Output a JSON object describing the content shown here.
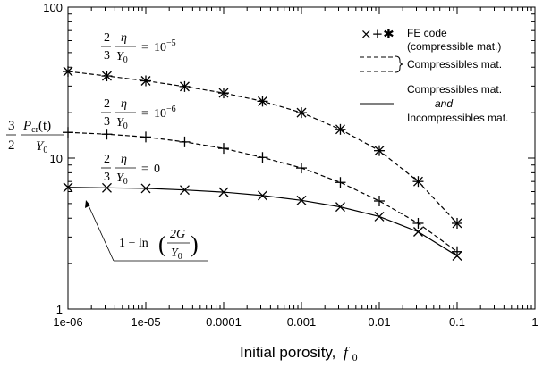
{
  "chart_data": {
    "type": "line",
    "xscale": "log",
    "yscale": "log",
    "xlim": [
      1e-06,
      1
    ],
    "ylim": [
      1,
      100
    ],
    "xticks": [
      "1e-06",
      "1e-05",
      "0.0001",
      "0.001",
      "0.01",
      "0.1",
      "1"
    ],
    "yticks": [
      "1",
      "10",
      "100"
    ],
    "xlabel_text": "Initial porosity,",
    "xlabel_symbol": "f",
    "xlabel_subscript": "0",
    "ylabel_fraction_num": "P",
    "ylabel_fraction_num_sub": "cr",
    "ylabel_fraction_num_arg": "(t)",
    "ylabel_fraction_den": "Y",
    "ylabel_fraction_den_sub": "0",
    "ylabel_coef_num": "3",
    "ylabel_coef_den": "2",
    "grid": false,
    "legend": {
      "placement": "top-right",
      "entries": [
        {
          "line1": "FE code",
          "line2": "(compressible mat.)",
          "style": "markers"
        },
        {
          "line1": "Compressibles mat.",
          "style": "dashed"
        },
        {
          "line1": "Compressibles mat.",
          "line2": "and",
          "line3": "Incompressibles mat.",
          "style": "solid"
        }
      ],
      "marker_glyphs": [
        "×",
        "+",
        "✱"
      ]
    },
    "annotations": {
      "eta_labels": [
        {
          "coef_num": "2",
          "coef_den": "3",
          "frac_num": "η",
          "frac_den": "Y",
          "frac_den_sub": "0",
          "rhs": "10",
          "rhs_exp": "−5"
        },
        {
          "coef_num": "2",
          "coef_den": "3",
          "frac_num": "η",
          "frac_den": "Y",
          "frac_den_sub": "0",
          "rhs": "10",
          "rhs_exp": "−6"
        },
        {
          "coef_num": "2",
          "coef_den": "3",
          "frac_num": "η",
          "frac_den": "Y",
          "frac_den_sub": "0",
          "rhs": "0",
          "rhs_exp": ""
        }
      ],
      "ln_label": {
        "prefix": "1 + ln",
        "frac_num": "2G",
        "frac_den": "Y",
        "frac_den_sub": "0"
      }
    },
    "x_points": [
      1e-06,
      3.16e-06,
      1e-05,
      3.16e-05,
      0.0001,
      0.000316,
      0.001,
      0.00316,
      0.01,
      0.0316,
      0.1
    ],
    "series": [
      {
        "marker": "star",
        "line": "dashed",
        "values": [
          37.5,
          35.0,
          32.5,
          29.8,
          27.0,
          23.8,
          20.0,
          15.5,
          11.2,
          7.0,
          3.7
        ]
      },
      {
        "marker": "plus",
        "line": "dashed",
        "values": [
          14.8,
          14.4,
          13.8,
          12.8,
          11.6,
          10.1,
          8.6,
          6.9,
          5.2,
          3.7,
          2.4
        ]
      },
      {
        "marker": "cross",
        "line": "solid",
        "values": [
          6.4,
          6.35,
          6.3,
          6.15,
          5.95,
          5.65,
          5.25,
          4.75,
          4.1,
          3.25,
          2.25
        ]
      }
    ]
  }
}
